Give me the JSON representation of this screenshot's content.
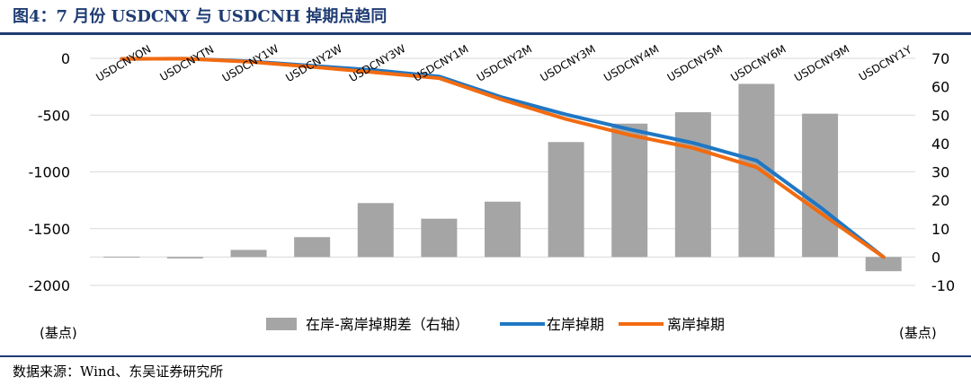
{
  "title": "图4：7 月份 USDCNY 与 USDCNH 掉期点趋同",
  "source": "数据来源：Wind、东吴证券研究所",
  "chart_data": {
    "type": "bar+line",
    "categories": [
      "USDCNYON",
      "USDCNYTN",
      "USDCNY1W",
      "USDCNY2W",
      "USDCNY3W",
      "USDCNY1M",
      "USDCNY2M",
      "USDCNY3M",
      "USDCNY4M",
      "USDCNY5M",
      "USDCNY6M",
      "USDCNY9M",
      "USDCNY1Y"
    ],
    "left_axis": {
      "min": -2000,
      "max": 0,
      "ticks": [
        0,
        -500,
        -1000,
        -1500,
        -2000
      ],
      "unit_label": "(基点)"
    },
    "right_axis": {
      "min": -10,
      "max": 70,
      "ticks": [
        70,
        60,
        50,
        40,
        30,
        20,
        10,
        0,
        -10
      ],
      "unit_label": "(基点)"
    },
    "series": [
      {
        "name": "在岸-离岸掉期差（右轴）",
        "type": "bar",
        "axis": "right",
        "color": "#a5a5a5",
        "values": [
          0.1,
          -0.5,
          2.5,
          7,
          19,
          13.5,
          19.5,
          40.5,
          47,
          51,
          61,
          50.5,
          -5
        ]
      },
      {
        "name": "在岸掉期",
        "type": "line",
        "axis": "left",
        "color": "#1f77c4",
        "values": [
          -5,
          -3,
          -25,
          -65,
          -105,
          -160,
          -345,
          -495,
          -625,
          -745,
          -900,
          -1310,
          -1750
        ]
      },
      {
        "name": "离岸掉期",
        "type": "line",
        "axis": "left",
        "color": "#f26b10",
        "values": [
          -5,
          -3,
          -30,
          -75,
          -125,
          -175,
          -365,
          -535,
          -675,
          -790,
          -960,
          -1360,
          -1750
        ]
      }
    ]
  }
}
